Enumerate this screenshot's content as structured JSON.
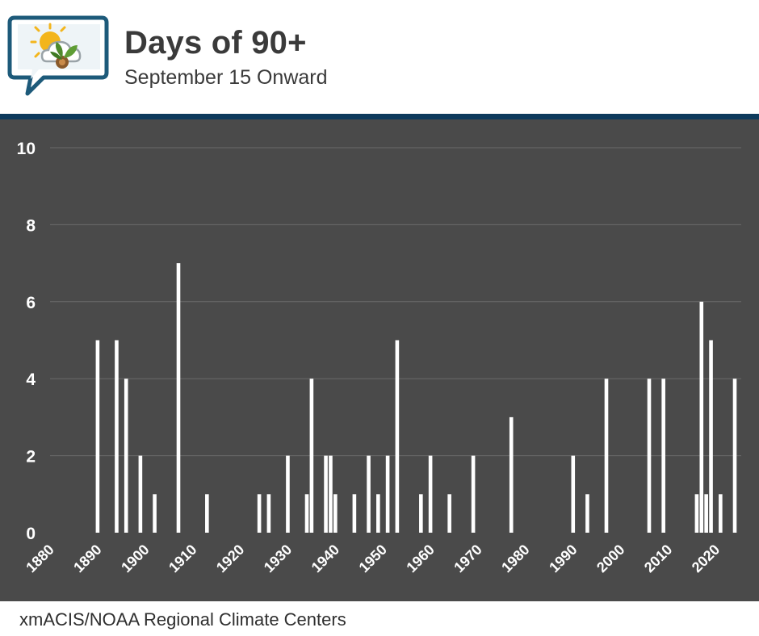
{
  "header": {
    "title": "Days of 90+",
    "subtitle": "September 15 Onward",
    "logo_icon": "weather-agriculture-logo-icon"
  },
  "footer": {
    "source": "xmACIS/NOAA Regional Climate Centers"
  },
  "colors": {
    "plot_background": "#4a4a4a",
    "band": "#0e3a5c",
    "bars": "#ffffff",
    "gridlines": "#6a6a6a",
    "text_dark": "#3a3a3a",
    "logo_blue": "#1d5a7a"
  },
  "chart_data": {
    "type": "bar",
    "title": "Days of 90+",
    "subtitle": "September 15 Onward",
    "xlabel": "",
    "ylabel": "",
    "xlim": [
      1880,
      2024
    ],
    "ylim": [
      0,
      10
    ],
    "x_ticks": [
      1880,
      1890,
      1900,
      1910,
      1920,
      1930,
      1940,
      1950,
      1960,
      1970,
      1980,
      1990,
      2000,
      2010,
      2020
    ],
    "y_ticks": [
      0,
      2,
      4,
      6,
      8,
      10
    ],
    "grid": true,
    "legend": "none",
    "x": [
      1890,
      1894,
      1896,
      1899,
      1902,
      1907,
      1913,
      1924,
      1926,
      1930,
      1934,
      1935,
      1938,
      1939,
      1940,
      1944,
      1947,
      1949,
      1951,
      1953,
      1958,
      1960,
      1964,
      1969,
      1977,
      1990,
      1993,
      1997,
      2006,
      2009,
      2016,
      2017,
      2018,
      2019,
      2021,
      2024
    ],
    "values": [
      5,
      5,
      4,
      2,
      1,
      7,
      1,
      1,
      1,
      2,
      1,
      4,
      2,
      2,
      1,
      1,
      2,
      1,
      2,
      5,
      1,
      2,
      1,
      2,
      3,
      2,
      1,
      4,
      4,
      4,
      1,
      6,
      1,
      5,
      1,
      4
    ]
  }
}
